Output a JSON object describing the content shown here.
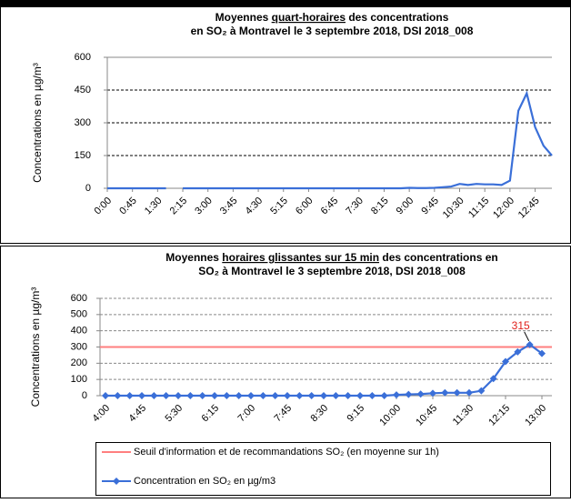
{
  "chart_data": [
    {
      "type": "line",
      "title": [
        [
          {
            "text": "Moyennes ",
            "underline": false
          },
          {
            "text": "quart-horaires",
            "underline": true
          },
          {
            "text": " des concentrations",
            "underline": false
          }
        ],
        [
          {
            "text": "en SO₂ à Montravel le 3 septembre 2018, DSI 2018_008",
            "underline": false
          }
        ]
      ],
      "y_label": "Concentrations en µg/m³",
      "categories": [
        "0:00",
        null,
        null,
        "0:45",
        null,
        null,
        "1:30",
        null,
        null,
        "2:15",
        null,
        null,
        "3:00",
        null,
        null,
        "3:45",
        null,
        null,
        "4:30",
        null,
        null,
        "5:15",
        null,
        null,
        "6:00",
        null,
        null,
        "6:45",
        null,
        null,
        "7:30",
        null,
        null,
        "8:15",
        null,
        null,
        "9:00",
        null,
        null,
        "9:45",
        null,
        null,
        "10:30",
        null,
        null,
        "11:15",
        null,
        null,
        "12:00",
        null,
        null,
        "12:45",
        null,
        null
      ],
      "series": [
        {
          "name": "Concentration en SO₂ en µg/m3",
          "color": "#3a6fd8",
          "values": [
            0,
            0,
            0,
            0,
            0,
            0,
            0,
            0,
            null,
            0,
            0,
            0,
            0,
            0,
            0,
            0,
            0,
            0,
            0,
            0,
            0,
            0,
            0,
            0,
            0,
            0,
            0,
            0,
            0,
            0,
            0,
            0,
            0,
            0,
            0,
            0,
            2,
            1,
            1,
            2,
            5,
            8,
            20,
            15,
            20,
            18,
            18,
            15,
            35,
            355,
            435,
            280,
            195,
            150
          ]
        }
      ],
      "ylim": [
        0,
        600
      ],
      "yticks": [
        0,
        150,
        300,
        450,
        600
      ],
      "grid": true,
      "grid_color": "#000000"
    },
    {
      "type": "line",
      "title": [
        [
          {
            "text": "Moyennes ",
            "underline": false
          },
          {
            "text": "horaires glissantes sur 15 min",
            "underline": true
          },
          {
            "text": " des concentrations en",
            "underline": false
          }
        ],
        [
          {
            "text": "SO₂ à Montravel le 3 septembre 2018, DSI 2018_008",
            "underline": false
          }
        ]
      ],
      "y_label": "Concentrations en µg/m³",
      "categories": [
        "4:00",
        null,
        null,
        "4:45",
        null,
        null,
        "5:30",
        null,
        null,
        "6:15",
        null,
        null,
        "7:00",
        null,
        null,
        "7:45",
        null,
        null,
        "8:30",
        null,
        null,
        "9:15",
        null,
        null,
        "10:00",
        null,
        null,
        "10:45",
        null,
        null,
        "11:30",
        null,
        null,
        "12:15",
        null,
        null,
        "13:00"
      ],
      "threshold": {
        "name": "Seuil d'information et de recommandations SO₂ (en moyenne sur 1h)",
        "value": 300,
        "color": "#ff7f7f"
      },
      "series": [
        {
          "name": "Concentration en SO₂ en µg/m3",
          "color": "#3a6fd8",
          "marker": "diamond",
          "values": [
            0,
            0,
            0,
            0,
            0,
            0,
            0,
            0,
            0,
            0,
            0,
            0,
            0,
            0,
            0,
            0,
            0,
            0,
            0,
            0,
            0,
            0,
            0,
            0,
            5,
            8,
            10,
            15,
            18,
            18,
            18,
            30,
            105,
            210,
            270,
            315,
            260
          ],
          "value_labels": [
            null,
            null,
            null,
            null,
            null,
            null,
            null,
            null,
            null,
            null,
            null,
            null,
            null,
            null,
            null,
            null,
            null,
            null,
            null,
            null,
            null,
            null,
            null,
            null,
            null,
            null,
            null,
            null,
            null,
            null,
            null,
            null,
            null,
            null,
            null,
            "315",
            null
          ],
          "value_label_color": "#e0201b"
        }
      ],
      "ylim": [
        0,
        600
      ],
      "yticks": [
        0,
        100,
        200,
        300,
        400,
        500,
        600
      ],
      "grid": true,
      "grid_color": "#888888",
      "legend": "bottom"
    }
  ]
}
